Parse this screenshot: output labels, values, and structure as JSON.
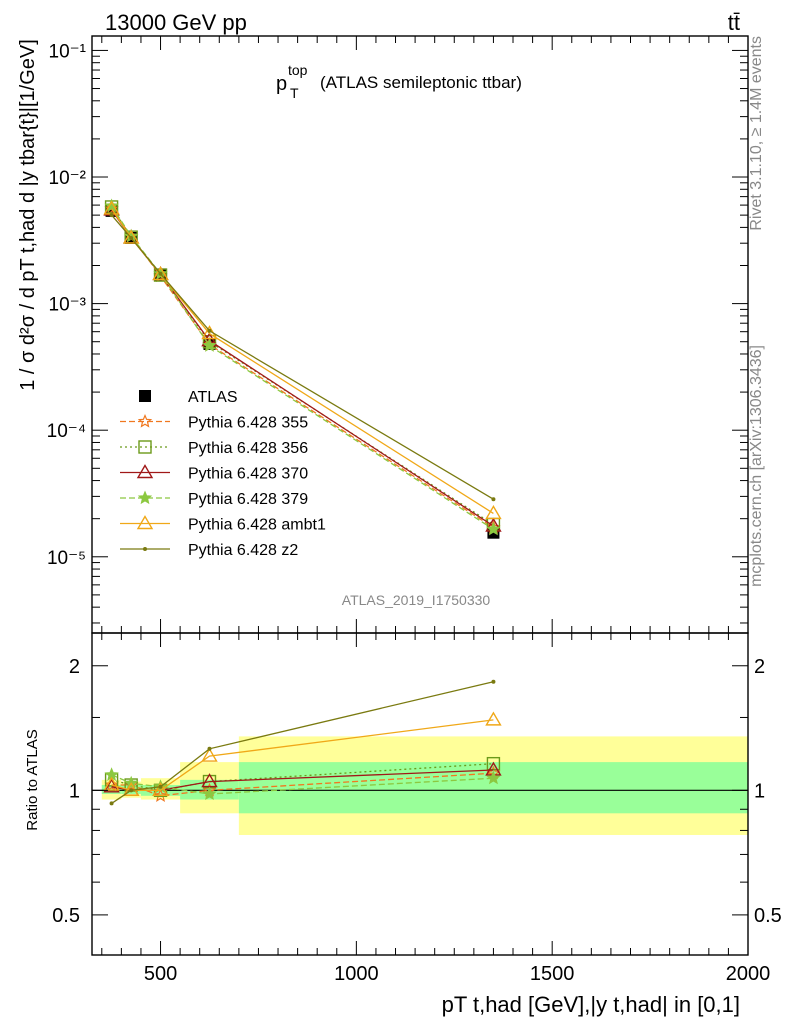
{
  "header": {
    "left": "13000 GeV pp",
    "right": "tt̄"
  },
  "side": {
    "rivet": "Rivet 3.1.10, ≥ 1.4M events",
    "mcplots": "mcplots.cern.ch [arXiv:1306.3436]"
  },
  "chart_data": [
    {
      "panel": "main",
      "type": "line",
      "title": "(ATLAS semileptonic ttbar)",
      "title_symbol": "p",
      "title_sup": "top",
      "title_sub": "T",
      "analysis": "ATLAS_2019_I1750330",
      "ylabel": "1 / σ d²σ / d pT t,had d |y tbar{t}|[1/GeV]",
      "xlabel": "pT t,had [GeV],|y t,had| in [0,1]",
      "xlim": [
        325,
        2000
      ],
      "ylim": [
        2.5e-06,
        0.13
      ],
      "yscale": "log",
      "x_ticks": [
        500,
        1000,
        1500,
        2000
      ],
      "x_tick_labels": [
        "500",
        "1000",
        "1500",
        "2000"
      ],
      "y_ticks": [
        1e-05,
        0.0001,
        0.001,
        0.01,
        0.1
      ],
      "y_tick_labels": [
        "10⁻⁵",
        "10⁻⁴",
        "10⁻³",
        "10⁻²",
        "10⁻¹"
      ],
      "legend_position": "middle-left",
      "x": [
        375,
        425,
        500,
        625,
        1350
      ],
      "series": [
        {
          "name": "ATLAS",
          "color": "#000000",
          "marker": "square-filled",
          "line": "none",
          "values": [
            0.0054,
            0.0033,
            0.0017,
            0.00048,
            1.55e-05
          ]
        },
        {
          "name": "Pythia 6.428 355",
          "color": "#f07820",
          "marker": "star-open",
          "line": "dashed",
          "values": [
            0.0056,
            0.0034,
            0.00165,
            0.000475,
            1.7e-05
          ]
        },
        {
          "name": "Pythia 6.428 356",
          "color": "#6b9a1a",
          "marker": "square-open",
          "line": "dotted",
          "values": [
            0.0058,
            0.00335,
            0.00168,
            0.0005,
            1.8e-05
          ]
        },
        {
          "name": "Pythia 6.428 370",
          "color": "#a01818",
          "marker": "triangle-open",
          "line": "solid",
          "values": [
            0.0055,
            0.0033,
            0.0017,
            0.00051,
            1.75e-05
          ]
        },
        {
          "name": "Pythia 6.428 379",
          "color": "#8cc840",
          "marker": "star-filled",
          "line": "dashed",
          "values": [
            0.0059,
            0.0034,
            0.00172,
            0.000465,
            1.65e-05
          ]
        },
        {
          "name": "Pythia 6.428 ambt1",
          "color": "#f0a818",
          "marker": "triangle-open",
          "line": "solid",
          "values": [
            0.0056,
            0.0033,
            0.0017,
            0.00058,
            2.2e-05
          ]
        },
        {
          "name": "Pythia 6.428 z2",
          "color": "#7a7a10",
          "marker": "dot",
          "line": "solid",
          "values": [
            0.005,
            0.0033,
            0.00172,
            0.00061,
            2.85e-05
          ]
        }
      ]
    },
    {
      "panel": "ratio",
      "type": "line",
      "ylabel": "Ratio to ATLAS",
      "xlim": [
        325,
        2000
      ],
      "ylim": [
        0.4,
        2.4
      ],
      "yscale": "log",
      "y_ticks": [
        0.5,
        1,
        2
      ],
      "y_tick_labels": [
        "0.5",
        "1",
        "2"
      ],
      "x": [
        375,
        425,
        500,
        625,
        1350
      ],
      "bin_edges": [
        350,
        400,
        450,
        550,
        700,
        2000
      ],
      "band_inner": [
        [
          0.98,
          1.03
        ],
        [
          0.98,
          1.03
        ],
        [
          0.97,
          1.03
        ],
        [
          0.95,
          1.06
        ],
        [
          0.88,
          1.17
        ]
      ],
      "band_outer": [
        [
          0.95,
          1.06
        ],
        [
          0.96,
          1.05
        ],
        [
          0.95,
          1.07
        ],
        [
          0.88,
          1.17
        ],
        [
          0.78,
          1.35
        ]
      ],
      "series": [
        {
          "name": "Pythia 6.428 355",
          "values": [
            1.03,
            1.03,
            0.97,
            1.0,
            1.1
          ]
        },
        {
          "name": "Pythia 6.428 356",
          "values": [
            1.06,
            1.03,
            1.0,
            1.05,
            1.16
          ]
        },
        {
          "name": "Pythia 6.428 370",
          "values": [
            1.02,
            1.0,
            1.0,
            1.05,
            1.12
          ]
        },
        {
          "name": "Pythia 6.428 379",
          "values": [
            1.09,
            1.04,
            1.02,
            0.98,
            1.07
          ]
        },
        {
          "name": "Pythia 6.428 ambt1",
          "values": [
            1.03,
            1.0,
            1.0,
            1.21,
            1.48
          ]
        },
        {
          "name": "Pythia 6.428 z2",
          "values": [
            0.93,
            1.0,
            1.02,
            1.26,
            1.83
          ]
        }
      ]
    }
  ]
}
